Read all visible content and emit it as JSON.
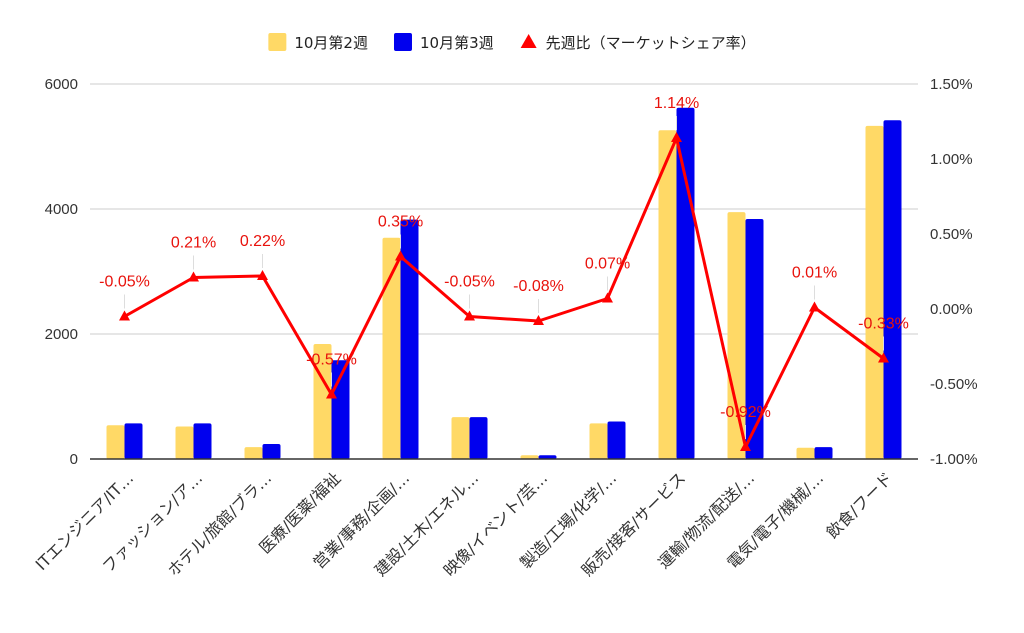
{
  "chart_data": {
    "type": "bar",
    "categories": [
      "ITエンジニア/IT…",
      "ファッション/ア…",
      "ホテル/旅館/ブラ…",
      "医療/医薬/福祉",
      "営業/事務/企画/…",
      "建設/土木/エネル…",
      "映像/イベント/芸…",
      "製造/工場/化学/…",
      "販売/接客/サービス",
      "運輸/物流/配送/…",
      "電気/電子/機械/…",
      "飲食/フード"
    ],
    "series": [
      {
        "name": "10月第2週",
        "type": "bar",
        "axis": "left",
        "color": "#ffd966",
        "values": [
          540,
          520,
          190,
          1840,
          3540,
          670,
          60,
          570,
          5260,
          3950,
          180,
          5330
        ]
      },
      {
        "name": "10月第3週",
        "type": "bar",
        "axis": "left",
        "color": "#0000ee",
        "values": [
          570,
          570,
          240,
          1580,
          3830,
          670,
          60,
          600,
          5620,
          3840,
          190,
          5420
        ]
      },
      {
        "name": "先週比（マーケットシェア率）",
        "type": "line",
        "axis": "right",
        "color": "#ff0000",
        "values": [
          -0.05,
          0.21,
          0.22,
          -0.57,
          0.35,
          -0.05,
          -0.08,
          0.07,
          1.14,
          -0.92,
          0.01,
          -0.33
        ],
        "labels": [
          "-0.05%",
          "0.21%",
          "0.22%",
          "-0.57%",
          "0.35%",
          "-0.05%",
          "-0.08%",
          "0.07%",
          "1.14%",
          "-0.92%",
          "0.01%",
          "-0.33%"
        ]
      }
    ],
    "y_left": {
      "ylim": [
        0,
        6000
      ],
      "ticks": [
        0,
        2000,
        4000,
        6000
      ],
      "tick_labels": [
        "0",
        "2000",
        "4000",
        "6000"
      ]
    },
    "y_right": {
      "ylim": [
        -1.0,
        1.5
      ],
      "ticks": [
        -1.0,
        -0.5,
        0.0,
        0.5,
        1.0,
        1.5
      ],
      "tick_labels": [
        "-1.00%",
        "-0.50%",
        "0.00%",
        "0.50%",
        "1.00%",
        "1.50%"
      ]
    },
    "grid": true,
    "legend_position": "top-center"
  }
}
